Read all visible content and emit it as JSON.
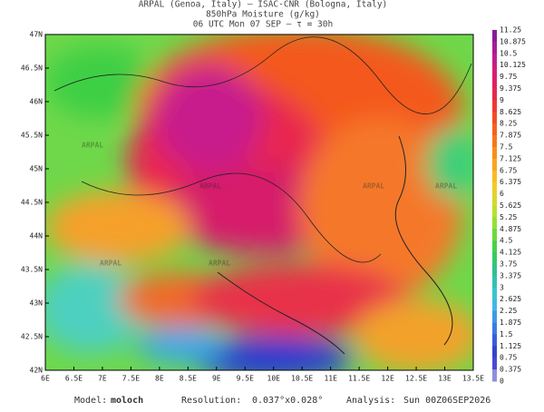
{
  "header": {
    "line1": "ARPAL (Genoa, Italy)  –  ISAC-CNR (Bologna, Italy)",
    "line2": "850hPa Moisture (g/kg)",
    "line3": "06 UTC Mon 07 SEP  –  τ = 30h"
  },
  "map": {
    "watermark": "ARPAL",
    "lon_labels": [
      "6E",
      "6.5E",
      "7E",
      "7.5E",
      "8E",
      "8.5E",
      "9E",
      "9.5E",
      "10E",
      "10.5E",
      "11E",
      "11.5E",
      "12E",
      "12.5E",
      "13E",
      "13.5E"
    ],
    "lat_labels": [
      "47N",
      "46.5N",
      "46N",
      "45.5N",
      "45N",
      "44.5N",
      "44N",
      "43.5N",
      "43N",
      "42.5N",
      "42N"
    ]
  },
  "colorbar": {
    "labels": [
      "11.25",
      "10.875",
      "10.5",
      "10.125",
      "9.75",
      "9.375",
      "9",
      "8.625",
      "8.25",
      "7.875",
      "7.5",
      "7.125",
      "6.75",
      "6.375",
      "6",
      "5.625",
      "5.25",
      "4.875",
      "4.5",
      "4.125",
      "3.75",
      "3.375",
      "3",
      "2.625",
      "2.25",
      "1.875",
      "1.5",
      "1.125",
      "0.75",
      "0.375",
      "0"
    ]
  },
  "footer": {
    "model_label": "Model:",
    "model": "moloch",
    "resolution_label": "Resolution:",
    "resolution": "0.037°x0.028°",
    "analysis_label": "Analysis:",
    "analysis": "Sun 00Z06SEP2026"
  }
}
